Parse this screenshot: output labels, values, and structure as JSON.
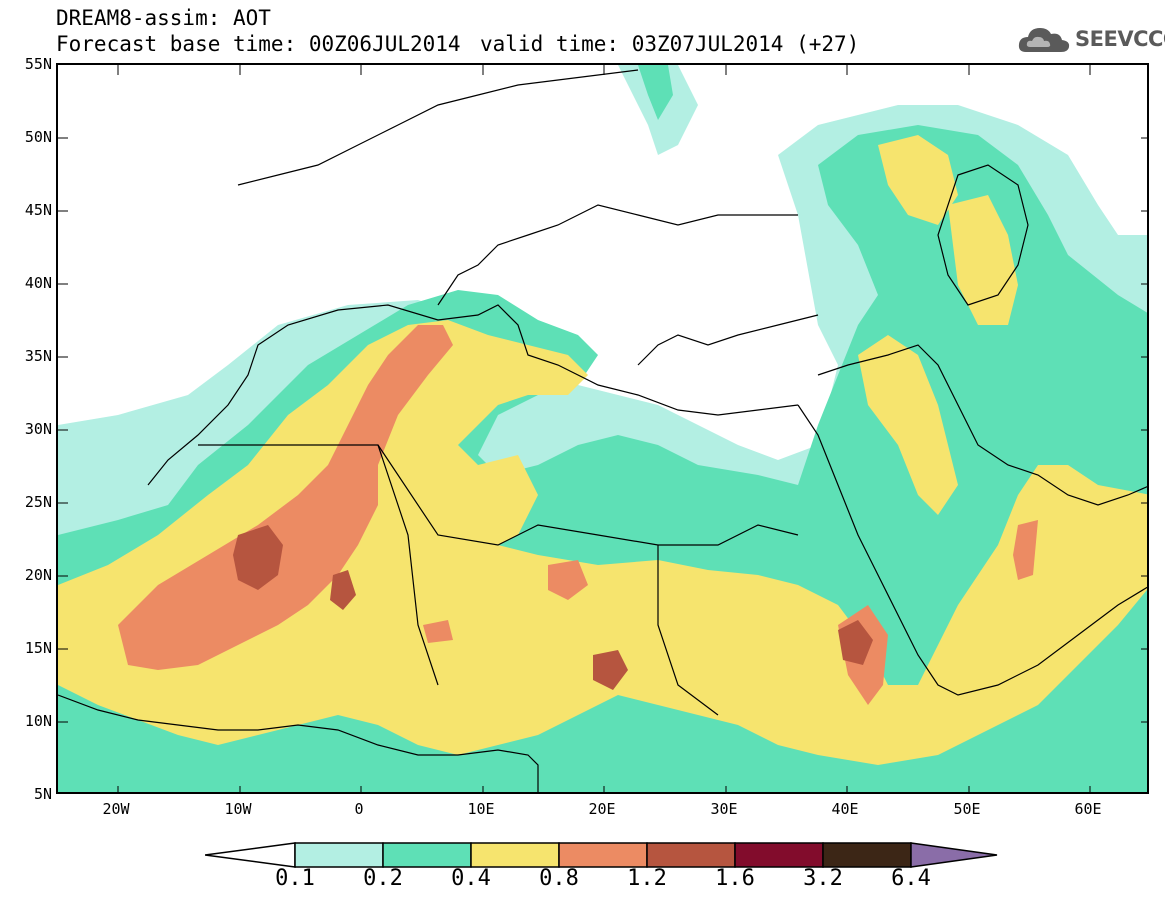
{
  "header": {
    "title": "DREAM8-assim: AOT",
    "base_time": "Forecast base time: 00Z06JUL2014",
    "valid_time": "valid time: 03Z07JUL2014 (+27)"
  },
  "logo": {
    "text": "SEEVCCC",
    "icon": "cloud-icon"
  },
  "map": {
    "lat_labels": [
      "55N",
      "50N",
      "45N",
      "40N",
      "35N",
      "30N",
      "25N",
      "20N",
      "15N",
      "10N",
      "5N"
    ],
    "lon_labels": [
      "20W",
      "10W",
      "0",
      "10E",
      "20E",
      "30E",
      "40E",
      "50E",
      "60E"
    ],
    "lat_range": [
      5,
      55
    ],
    "lon_range": [
      -25,
      65
    ],
    "variable": "Aerosol optical thickness"
  },
  "colorbar": {
    "tick_labels": [
      "0.1",
      "0.2",
      "0.4",
      "0.8",
      "1.2",
      "1.6",
      "3.2",
      "6.4"
    ],
    "colors": [
      "#b3efe3",
      "#5ee0b6",
      "#f6e46e",
      "#ec8b63",
      "#b6553f",
      "#820c2c",
      "#3c2616",
      "#8a6da8"
    ],
    "under_color": "#ffffff"
  }
}
